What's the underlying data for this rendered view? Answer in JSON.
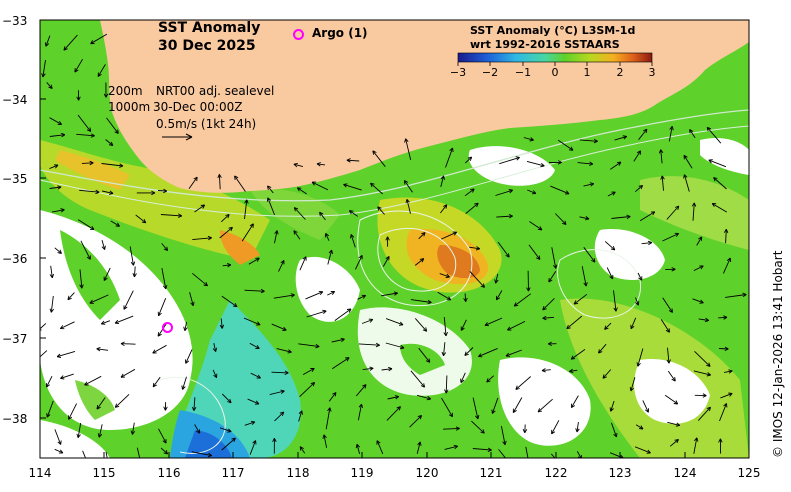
{
  "title": {
    "line1": "SST Anomaly",
    "line2": "30 Dec 2025"
  },
  "argo": {
    "label": "Argo (1)",
    "color": "#ff00ff"
  },
  "info": {
    "depth200": "200m",
    "product": "NRT00 adj. sealevel",
    "depth1000": "1000m",
    "time": "30-Dec 00:00Z",
    "scale": "0.5m/s (1kt 24h)"
  },
  "colorbar": {
    "title1": "SST Anomaly (°C) L3SM-1d",
    "title2": "wrt 1992-2016 SSTAARS",
    "ticks": [
      "−3",
      "−2",
      "−1",
      "0",
      "1",
      "2",
      "3"
    ]
  },
  "axes": {
    "y_labels": [
      "−33",
      "−34",
      "−35",
      "−36",
      "−37",
      "−38"
    ],
    "x_labels": [
      "114",
      "115",
      "116",
      "117",
      "118",
      "119",
      "120",
      "121",
      "122",
      "123",
      "124",
      "125"
    ]
  },
  "credit": "© IMOS 12-Jan-2026 13:41 Hobart",
  "colors": {
    "land": "#f9c9a0",
    "ocean_base": "#5ed12a"
  }
}
